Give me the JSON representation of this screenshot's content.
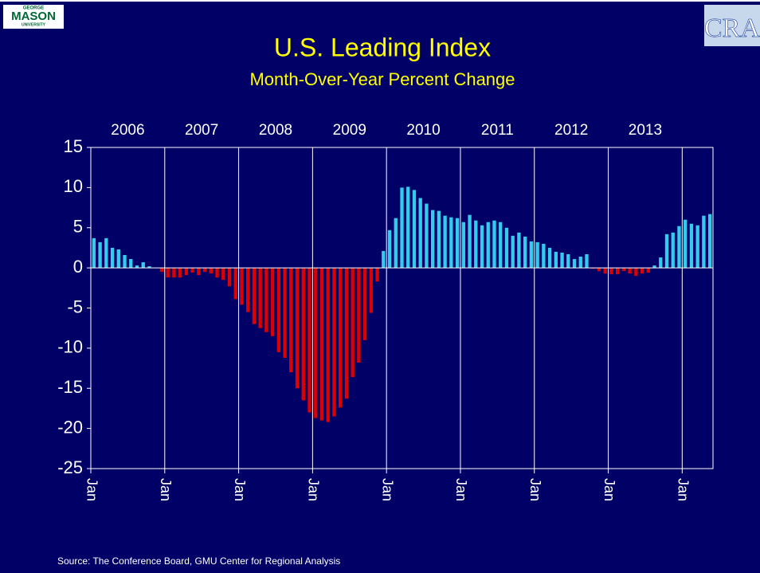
{
  "chart_data": {
    "type": "bar",
    "title": "U.S. Leading Index",
    "subtitle": "Month-Over-Year Percent Change",
    "source": "Source: The Conference Board, GMU Center for Regional Analysis",
    "logo_left": {
      "top": "GEORGE",
      "main": "MASON",
      "bottom": "UNIVERSITY"
    },
    "logo_right": "CRA",
    "years": [
      "2006",
      "2007",
      "2008",
      "2009",
      "2010",
      "2011",
      "2012",
      "2013"
    ],
    "categories": [
      "Jan",
      null,
      null,
      null,
      null,
      null,
      null,
      null,
      null,
      null,
      null,
      null,
      "Jan",
      null,
      null,
      null,
      null,
      null,
      null,
      null,
      null,
      null,
      null,
      null,
      "Jan",
      null,
      null,
      null,
      null,
      null,
      null,
      null,
      null,
      null,
      null,
      null,
      "Jan",
      null,
      null,
      null,
      null,
      null,
      null,
      null,
      null,
      null,
      null,
      null,
      "Jan",
      null,
      null,
      null,
      null,
      null,
      null,
      null,
      null,
      null,
      null,
      null,
      "Jan",
      null,
      null,
      null,
      null,
      null,
      null,
      null,
      null,
      null,
      null,
      null,
      "Jan",
      null,
      null,
      null,
      null,
      null,
      null,
      null,
      null,
      null,
      null,
      null,
      "Jan",
      null,
      null,
      null,
      null,
      null,
      null,
      null,
      null,
      null,
      null,
      null,
      "Jan",
      null,
      null,
      null,
      null
    ],
    "values": [
      3.7,
      3.2,
      3.7,
      2.5,
      2.3,
      1.6,
      1.1,
      0.3,
      0.7,
      0.2,
      0,
      -0.5,
      -1.2,
      -1.2,
      -1.2,
      -0.9,
      -0.6,
      -0.9,
      -0.5,
      -0.7,
      -1.2,
      -1.5,
      -2.3,
      -3.9,
      -4.6,
      -5.5,
      -7.0,
      -7.5,
      -8.0,
      -8.5,
      -10.5,
      -11.2,
      -13.0,
      -15.0,
      -16.5,
      -18.0,
      -18.7,
      -19.0,
      -19.2,
      -18.5,
      -17.4,
      -16.3,
      -13.6,
      -11.8,
      -9.0,
      -5.6,
      -1.7,
      2.1,
      4.7,
      6.2,
      10.0,
      10.1,
      9.7,
      8.7,
      8.0,
      7.2,
      7.1,
      6.5,
      6.3,
      6.2,
      5.7,
      6.6,
      5.9,
      5.3,
      5.7,
      5.9,
      5.7,
      5.0,
      4.0,
      4.4,
      3.9,
      3.3,
      3.2,
      3.0,
      2.5,
      2.0,
      1.9,
      1.7,
      1.1,
      1.4,
      1.7,
      -0.1,
      -0.4,
      -0.7,
      -0.8,
      -0.8,
      -0.4,
      -0.7,
      -1.0,
      -0.7,
      -0.6,
      0.3,
      1.3,
      4.2,
      4.4,
      5.2,
      6.0,
      5.5,
      5.3,
      6.5,
      6.7
    ],
    "positive_color": "#33ccee",
    "negative_color": "#dd0000",
    "ylim": [
      -25,
      15
    ],
    "yticks": [
      -25,
      -20,
      -15,
      -10,
      -5,
      0,
      5,
      10,
      15
    ],
    "grid": "vertical"
  }
}
